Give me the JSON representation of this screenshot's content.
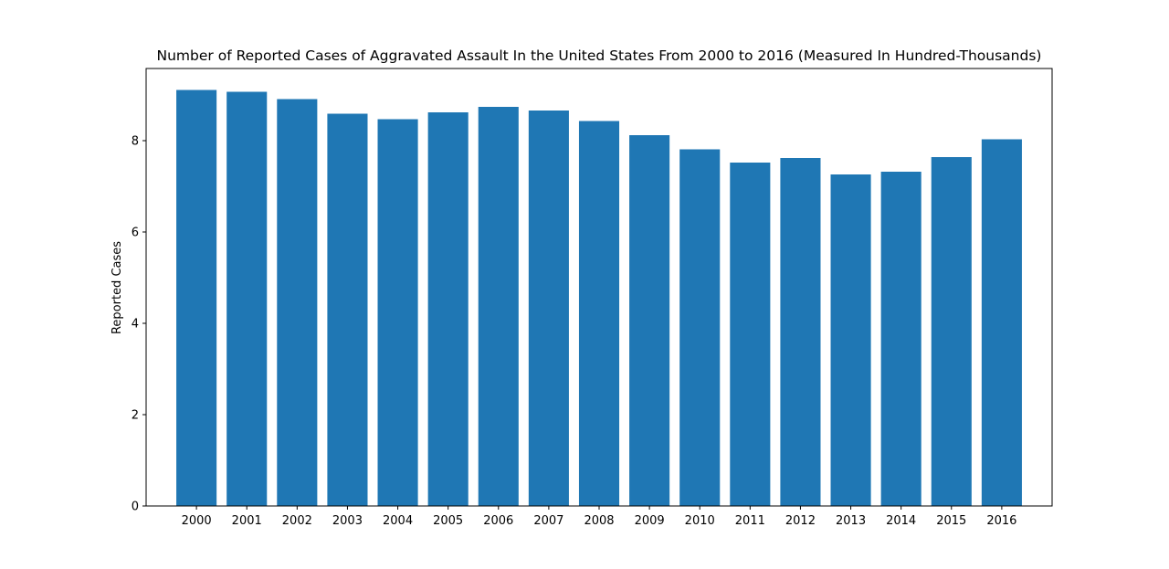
{
  "chart_data": {
    "type": "bar",
    "title": "Number of Reported Cases of Aggravated Assault In the United States From 2000 to 2016 (Measured In Hundred-Thousands)",
    "xlabel": "",
    "ylabel": "Reported Cases",
    "categories": [
      "2000",
      "2001",
      "2002",
      "2003",
      "2004",
      "2005",
      "2006",
      "2007",
      "2008",
      "2009",
      "2010",
      "2011",
      "2012",
      "2013",
      "2014",
      "2015",
      "2016"
    ],
    "values": [
      9.11,
      9.07,
      8.91,
      8.59,
      8.47,
      8.62,
      8.74,
      8.66,
      8.43,
      8.12,
      7.81,
      7.52,
      7.62,
      7.26,
      7.32,
      7.64,
      8.03
    ],
    "ylim": [
      0,
      9.58
    ],
    "yticks": [
      0,
      2,
      4,
      6,
      8
    ],
    "grid": false,
    "bar_color": "#1f77b4"
  }
}
